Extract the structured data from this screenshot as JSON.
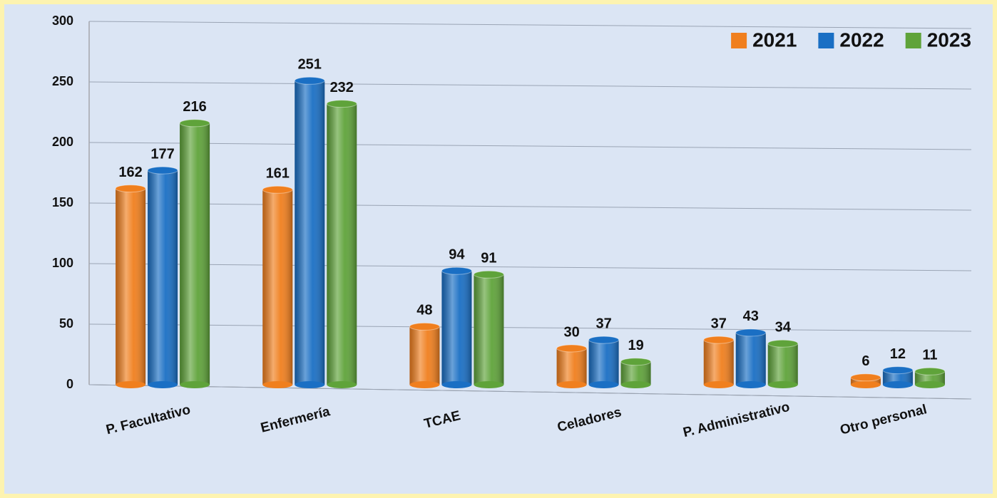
{
  "chart_data": {
    "type": "bar",
    "categories": [
      "P. Facultativo",
      "Enfermería",
      "TCAE",
      "Celadores",
      "P. Administrativo",
      "Otro personal"
    ],
    "series": [
      {
        "name": "2021",
        "color": "#f07f1e",
        "values": [
          162,
          161,
          48,
          30,
          37,
          6
        ]
      },
      {
        "name": "2022",
        "color": "#1a6fc4",
        "values": [
          177,
          251,
          94,
          37,
          43,
          12
        ]
      },
      {
        "name": "2023",
        "color": "#5fa33a",
        "values": [
          216,
          232,
          91,
          19,
          34,
          11
        ]
      }
    ],
    "ylim": [
      0,
      300
    ],
    "yticks": [
      0,
      50,
      100,
      150,
      200,
      250,
      300
    ],
    "grid": true,
    "legend": "top-right"
  }
}
